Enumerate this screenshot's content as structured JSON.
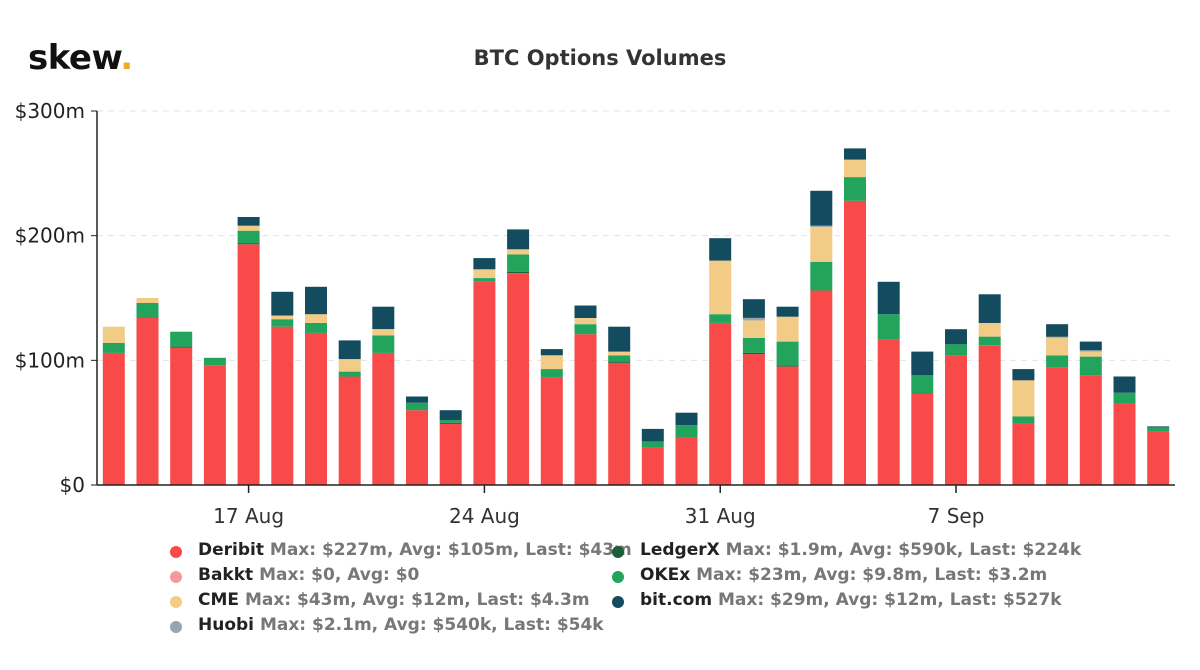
{
  "logo": {
    "text": "skew",
    "dot": "."
  },
  "colors": {
    "Deribit": "#f94a4a",
    "Bakkt": "#f59a9a",
    "CME": "#f2cb86",
    "Huobi": "#9aa4ad",
    "LedgerX": "#1a5e3a",
    "OKEx": "#22a45d",
    "bit.com": "#134b5f",
    "grid": "#e3e3e3",
    "axis": "#222222"
  },
  "chart_data": {
    "type": "bar",
    "stacked": true,
    "title": "BTC Options Volumes",
    "xlabel": "",
    "ylabel": "",
    "ylim": [
      0,
      300
    ],
    "yticks": [
      "$0",
      "$100m",
      "$200m",
      "$300m"
    ],
    "ytick_values": [
      0,
      100,
      200,
      300
    ],
    "xticks": [
      {
        "label": "17 Aug",
        "index": 4
      },
      {
        "label": "24 Aug",
        "index": 11
      },
      {
        "label": "31 Aug",
        "index": 18
      },
      {
        "label": "7 Sep",
        "index": 25
      }
    ],
    "series": [
      {
        "name": "Deribit",
        "values": [
          106,
          134,
          110,
          96,
          193,
          127,
          122,
          87,
          106,
          60,
          49,
          163,
          170,
          86,
          121,
          98,
          30,
          38,
          130,
          105,
          95,
          156,
          228,
          117,
          73,
          104,
          112,
          49,
          94,
          88,
          65,
          43
        ]
      },
      {
        "name": "LedgerX",
        "values": [
          0,
          0,
          1,
          0,
          1,
          0,
          0,
          0,
          0,
          0,
          1,
          0,
          1,
          0,
          0,
          1,
          0,
          0,
          0,
          1,
          1,
          0,
          0,
          0,
          0,
          0,
          0,
          0,
          0,
          0,
          0,
          0
        ]
      },
      {
        "name": "OKEx",
        "values": [
          8,
          12,
          12,
          6,
          10,
          6,
          8,
          4,
          14,
          6,
          2,
          3,
          14,
          7,
          8,
          5,
          5,
          10,
          7,
          12,
          19,
          23,
          19,
          20,
          15,
          9,
          7,
          6,
          10,
          15,
          9,
          3
        ]
      },
      {
        "name": "CME",
        "values": [
          13,
          4,
          0,
          0,
          4,
          3,
          7,
          10,
          5,
          0,
          0,
          7,
          4,
          11,
          5,
          3,
          0,
          0,
          43,
          14,
          20,
          28,
          14,
          0,
          0,
          0,
          11,
          29,
          14,
          4,
          0,
          0
        ]
      },
      {
        "name": "Huobi",
        "values": [
          0,
          0,
          0,
          0,
          0,
          0,
          0,
          0,
          0,
          0,
          0,
          0,
          0,
          0,
          0,
          0,
          0,
          0,
          0,
          2,
          0,
          1,
          0,
          0,
          0,
          0,
          0,
          0,
          1,
          1,
          0,
          0
        ]
      },
      {
        "name": "bit.com",
        "values": [
          0,
          0,
          0,
          0,
          7,
          19,
          22,
          15,
          18,
          5,
          8,
          9,
          16,
          5,
          10,
          20,
          10,
          10,
          18,
          15,
          8,
          28,
          9,
          26,
          19,
          12,
          23,
          9,
          10,
          7,
          13,
          1
        ]
      }
    ]
  },
  "legend": [
    {
      "name": "Deribit",
      "stats": "Max: $227m, Avg: $105m, Last: $43m"
    },
    {
      "name": "Bakkt",
      "stats": "Max: $0, Avg: $0"
    },
    {
      "name": "CME",
      "stats": "Max: $43m, Avg: $12m, Last: $4.3m"
    },
    {
      "name": "Huobi",
      "stats": "Max: $2.1m, Avg: $540k, Last: $54k"
    },
    {
      "name": "LedgerX",
      "stats": "Max: $1.9m, Avg: $590k, Last: $224k"
    },
    {
      "name": "OKEx",
      "stats": "Max: $23m, Avg: $9.8m, Last: $3.2m"
    },
    {
      "name": "bit.com",
      "stats": "Max: $29m, Avg: $12m, Last: $527k"
    }
  ]
}
